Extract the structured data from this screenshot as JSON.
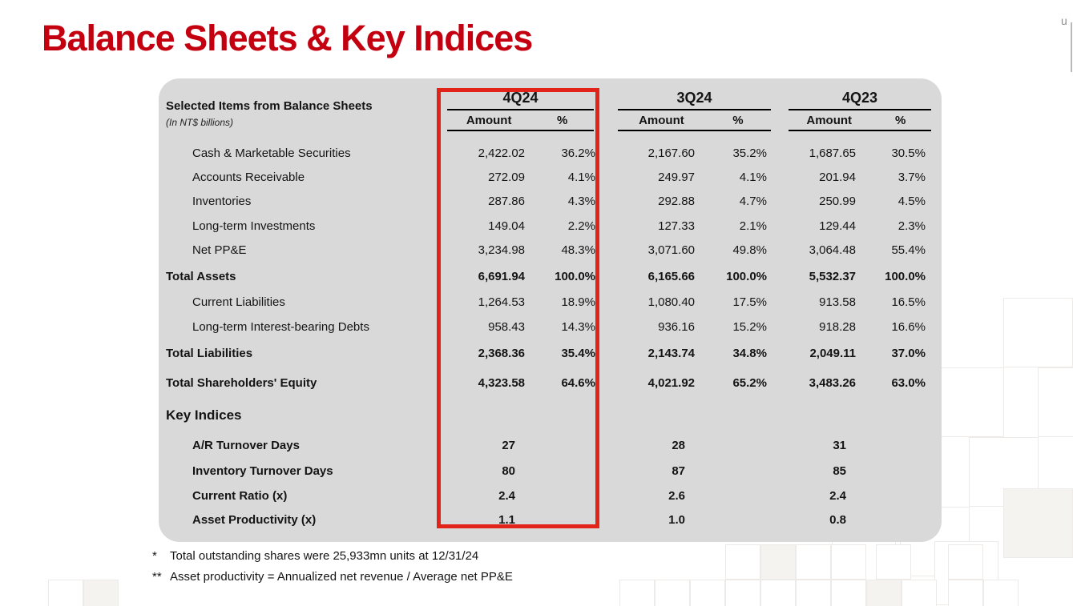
{
  "slide": {
    "title": "Balance Sheets & Key Indices",
    "corner_text": "u"
  },
  "table": {
    "title": "Selected Items from Balance Sheets",
    "subtitle": "(In NT$ billions)",
    "columns": [
      {
        "label": "4Q24",
        "highlighted": true
      },
      {
        "label": "3Q24",
        "highlighted": false
      },
      {
        "label": "4Q23",
        "highlighted": false
      }
    ],
    "subcolumns": {
      "amount": "Amount",
      "percent": "%"
    },
    "balance_rows": [
      {
        "label": "Cash & Marketable Securities",
        "style": "sub",
        "cells": [
          "2,422.02",
          "36.2%",
          "2,167.60",
          "35.2%",
          "1,687.65",
          "30.5%"
        ]
      },
      {
        "label": "Accounts Receivable",
        "style": "sub",
        "cells": [
          "272.09",
          "4.1%",
          "249.97",
          "4.1%",
          "201.94",
          "3.7%"
        ]
      },
      {
        "label": "Inventories",
        "style": "sub",
        "cells": [
          "287.86",
          "4.3%",
          "292.88",
          "4.7%",
          "250.99",
          "4.5%"
        ]
      },
      {
        "label": "Long-term Investments",
        "style": "sub",
        "cells": [
          "149.04",
          "2.2%",
          "127.33",
          "2.1%",
          "129.44",
          "2.3%"
        ]
      },
      {
        "label": "Net PP&E",
        "style": "sub",
        "cells": [
          "3,234.98",
          "48.3%",
          "3,071.60",
          "49.8%",
          "3,064.48",
          "55.4%"
        ]
      },
      {
        "label": "Total Assets",
        "style": "total",
        "cells": [
          "6,691.94",
          "100.0%",
          "6,165.66",
          "100.0%",
          "5,532.37",
          "100.0%"
        ]
      },
      {
        "label": "Current Liabilities",
        "style": "sub",
        "cells": [
          "1,264.53",
          "18.9%",
          "1,080.40",
          "17.5%",
          "913.58",
          "16.5%"
        ]
      },
      {
        "label": "Long-term Interest-bearing Debts",
        "style": "sub",
        "cells": [
          "958.43",
          "14.3%",
          "936.16",
          "15.2%",
          "918.28",
          "16.6%"
        ]
      },
      {
        "label": "Total Liabilities",
        "style": "total",
        "cells": [
          "2,368.36",
          "35.4%",
          "2,143.74",
          "34.8%",
          "2,049.11",
          "37.0%"
        ]
      },
      {
        "label": "Total Shareholders' Equity",
        "style": "total",
        "cells": [
          "4,323.58",
          "64.6%",
          "4,021.92",
          "65.2%",
          "3,483.26",
          "63.0%"
        ]
      }
    ],
    "key_indices": {
      "heading": "Key Indices",
      "rows": [
        {
          "label": "A/R Turnover Days",
          "values": [
            "27",
            "28",
            "31"
          ]
        },
        {
          "label": "Inventory Turnover Days",
          "values": [
            "80",
            "87",
            "85"
          ]
        },
        {
          "label": "Current Ratio (x)",
          "values": [
            "2.4",
            "2.6",
            "2.4"
          ]
        },
        {
          "label": "Asset Productivity (x)",
          "values": [
            "1.1",
            "1.0",
            "0.8"
          ]
        }
      ]
    }
  },
  "footnotes": [
    {
      "marker": "*",
      "text": "Total outstanding shares were 25,933mn units at 12/31/24"
    },
    {
      "marker": "**",
      "text": "Asset productivity = Annualized net revenue / Average net PP&E"
    }
  ],
  "colors": {
    "title_red": "#C40010",
    "highlight_box_red": "#E2231A",
    "card_background": "#D9D9D9"
  }
}
